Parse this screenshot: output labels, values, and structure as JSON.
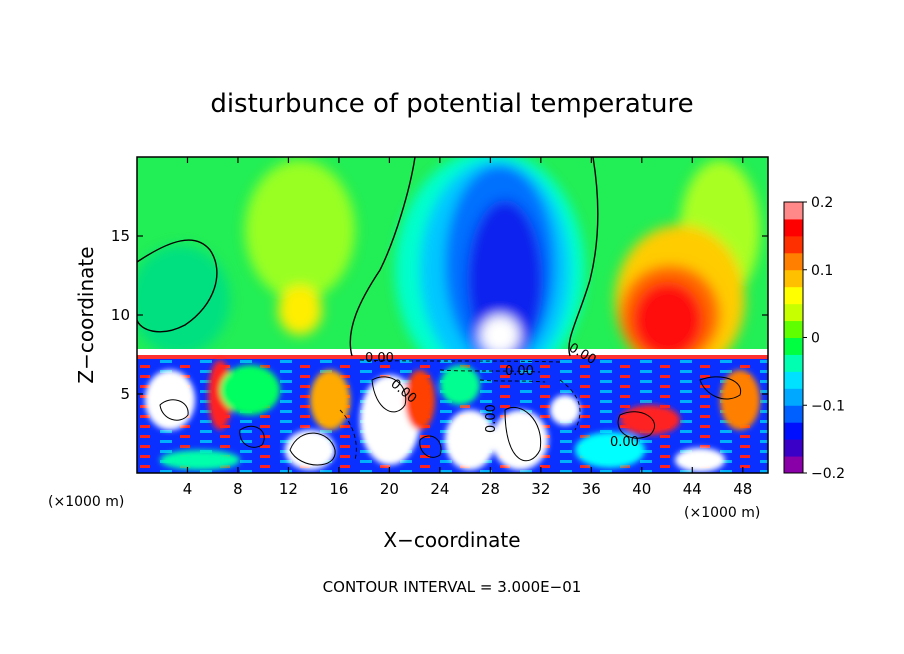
{
  "chart_data": {
    "type": "heatmap",
    "title": "disturbunce of potential temperature",
    "xlabel": "X−coordinate",
    "ylabel": "Z−coordinate",
    "x_unit_left": "(×1000 m)",
    "x_unit_right": "(×1000 m)",
    "xlim": [
      0,
      50
    ],
    "ylim": [
      0,
      20
    ],
    "x_ticks": [
      4,
      8,
      12,
      16,
      20,
      24,
      28,
      32,
      36,
      40,
      44,
      48
    ],
    "x_tick_labels": [
      "4",
      "8",
      "12",
      "16",
      "20",
      "24",
      "28",
      "32",
      "36",
      "40",
      "44",
      "48"
    ],
    "y_ticks": [
      5,
      10,
      15
    ],
    "y_tick_labels": [
      "5",
      "10",
      "15"
    ],
    "colorbar": {
      "range": [
        -0.2,
        0.2
      ],
      "ticks": [
        0.2,
        0.1,
        0,
        -0.1,
        -0.2
      ],
      "tick_labels": [
        "0.2",
        "0.1",
        "0",
        "−0.1",
        "−0.2"
      ],
      "colors": [
        "#8a00a8",
        "#3a00c8",
        "#0010ff",
        "#0060ff",
        "#00a8ff",
        "#00e0ff",
        "#00ffb0",
        "#00ff40",
        "#60ff00",
        "#c8ff00",
        "#ffff00",
        "#ffc000",
        "#ff8000",
        "#ff3000",
        "#ff0000",
        "#ff8888"
      ]
    },
    "contour_labels": [
      "0.00",
      "0.00",
      "0.00",
      "0.00",
      "0.00",
      "0.00"
    ],
    "footer": "CONTOUR INTERVAL = 3.000E−01"
  }
}
